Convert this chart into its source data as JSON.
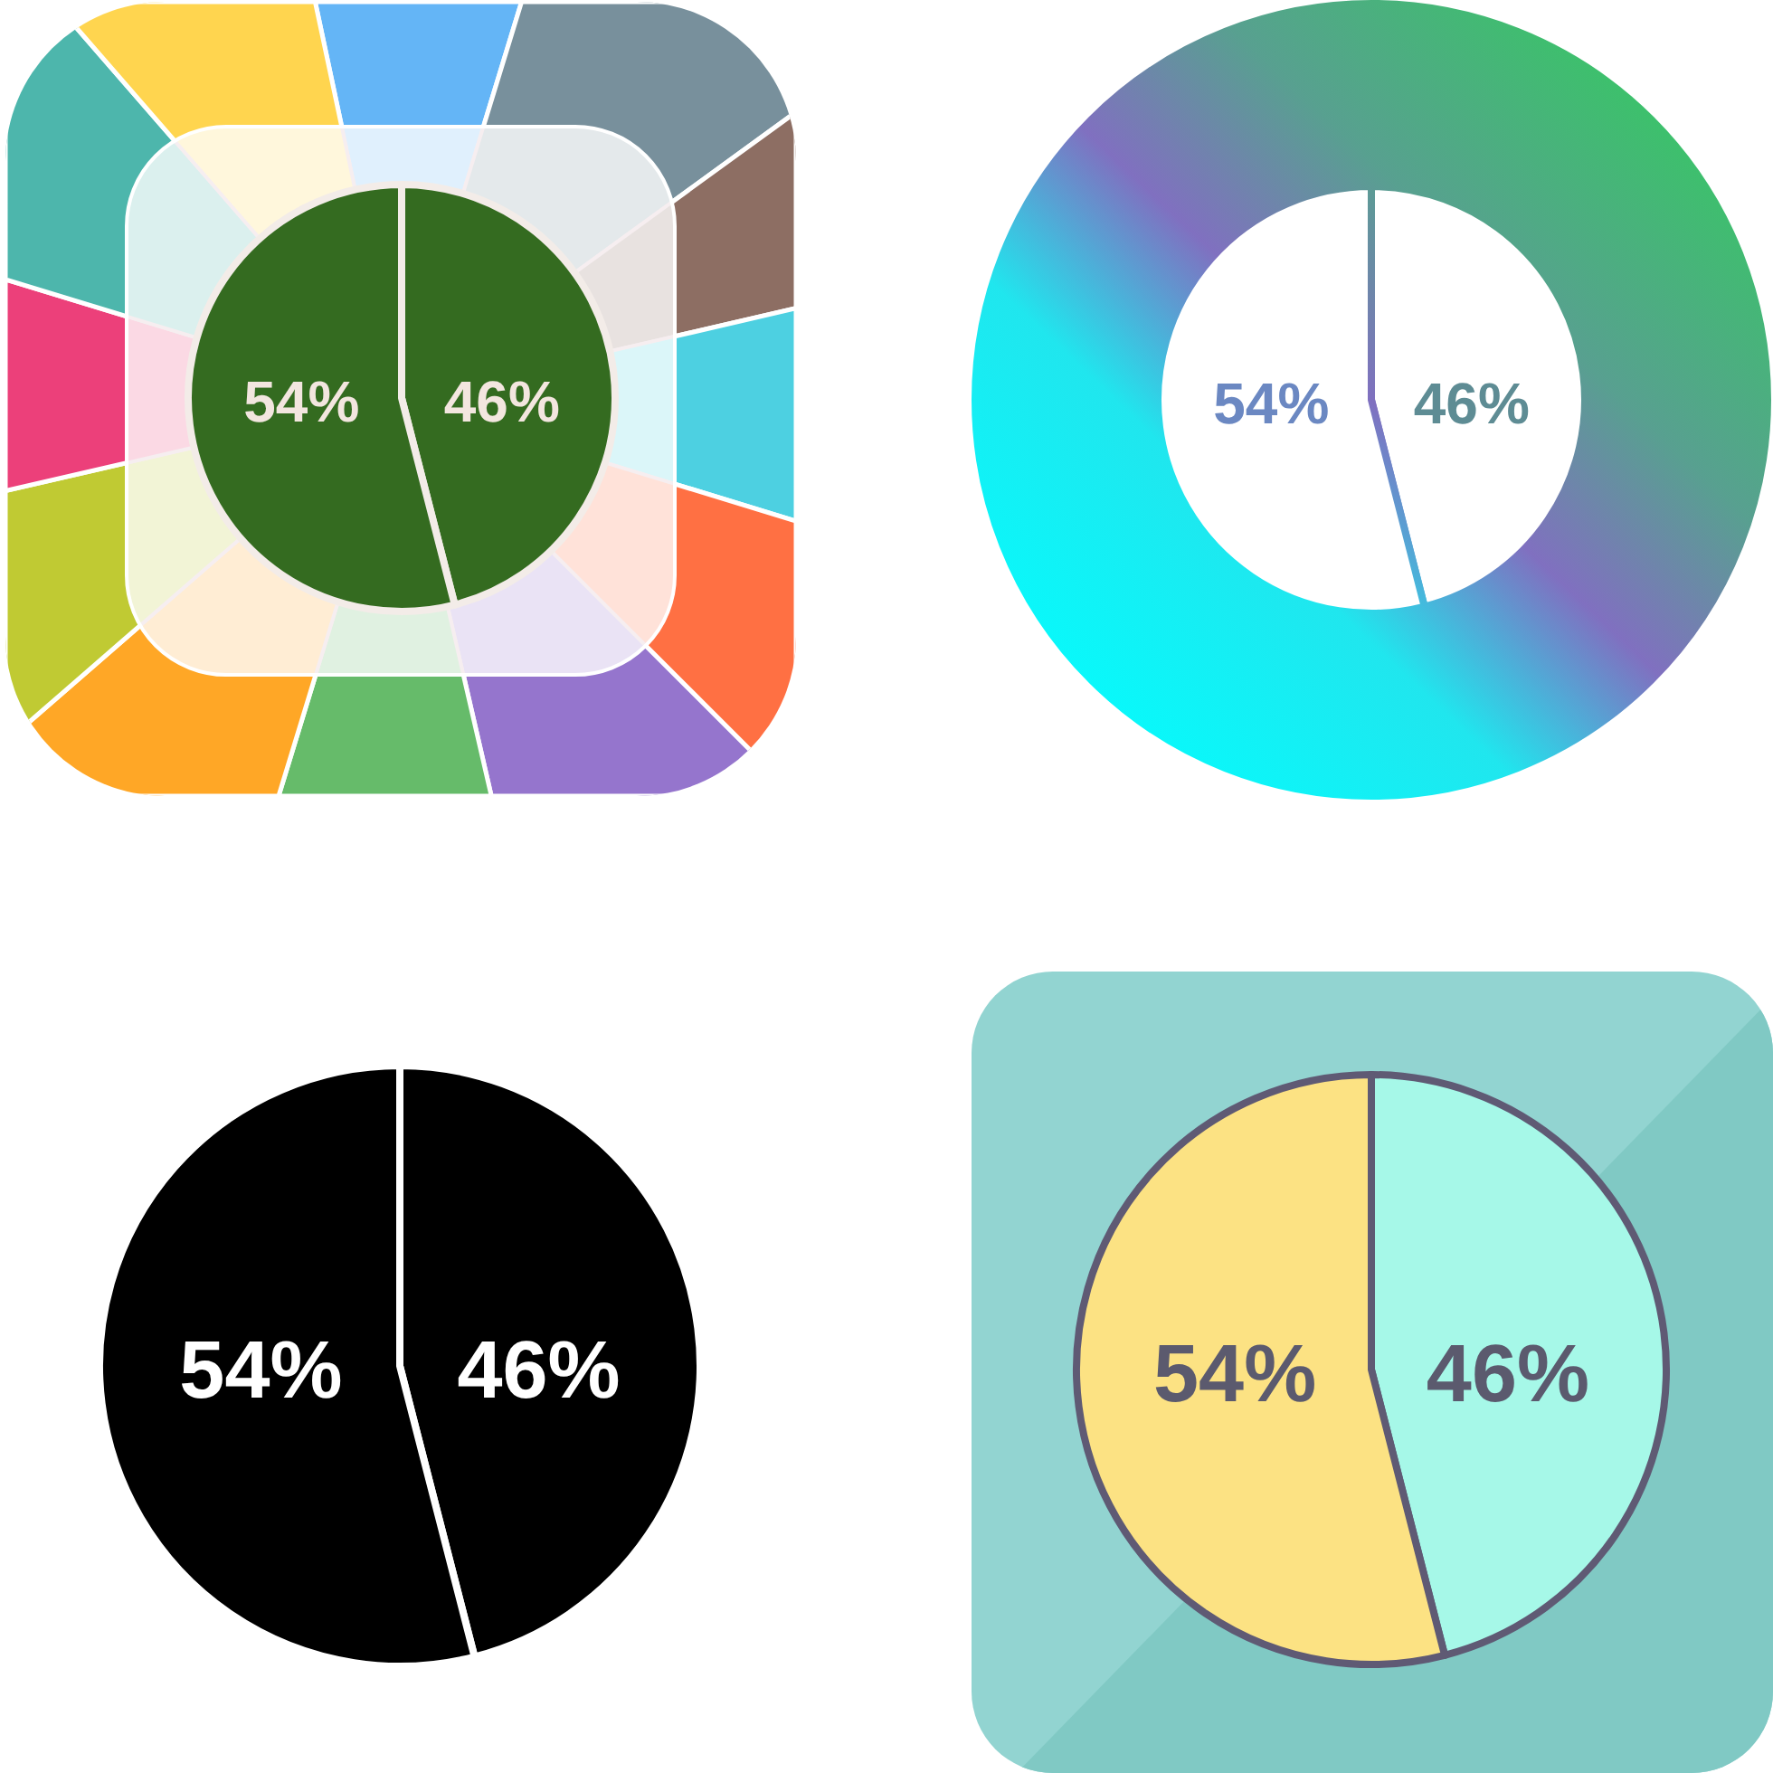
{
  "chart_data": [
    {
      "type": "pie",
      "categories": [
        null,
        null
      ],
      "values": [
        46,
        54
      ],
      "colors": [
        "#346b20",
        "#346b20"
      ],
      "value_labels": [
        "46%",
        "54%"
      ]
    },
    {
      "type": "pie",
      "categories": [
        null,
        null
      ],
      "values": [
        46,
        54
      ],
      "colors": [
        "#ffffff",
        "#ffffff"
      ],
      "value_labels": [
        "46%",
        "54%"
      ]
    },
    {
      "type": "pie",
      "categories": [
        null,
        null
      ],
      "values": [
        46,
        54
      ],
      "colors": [
        "#000000",
        "#000000"
      ],
      "value_labels": [
        "46%",
        "54%"
      ]
    },
    {
      "type": "pie",
      "categories": [
        null,
        null
      ],
      "values": [
        46,
        54
      ],
      "colors": [
        "#a6f8e8",
        "#fce283"
      ],
      "value_labels": [
        "46%",
        "54%"
      ]
    }
  ]
}
